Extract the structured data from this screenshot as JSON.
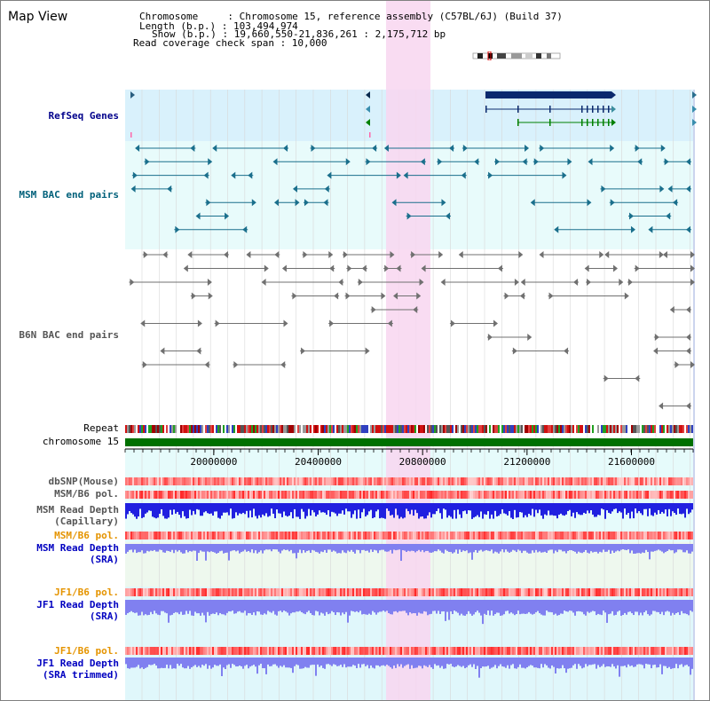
{
  "header": {
    "title": "Map View",
    "chromosome_line": "Chromosome     : Chromosome 15, reference assembly (C57BL/6J) (Build 37)",
    "length_line": "Length (b.p.) : 103,494,974",
    "show_line": "Show (b.p.) : 19,660,550-21,836,261 : 2,175,712 bp",
    "coverage_line": "Read coverage check span : 10,000"
  },
  "tracks": {
    "refseq": "RefSeq Genes",
    "msm_bac": "MSM BAC end pairs",
    "b6n_bac": "B6N BAC end pairs",
    "repeat": "Repeat",
    "chromosome": "chromosome 15",
    "dbsnp": "dbSNP(Mouse)",
    "msm_pol_1": "MSM/B6 pol.",
    "msm_depth_cap_1": "MSM Read Depth",
    "msm_depth_cap_2": "(Capillary)",
    "msm_pol_2": "MSM/B6 pol.",
    "msm_depth_sra_1": "MSM Read Depth",
    "msm_depth_sra_2": "(SRA)",
    "jf1_pol_1": "JF1/B6 pol.",
    "jf1_depth_sra_1": "JF1 Read Depth",
    "jf1_depth_sra_2": "(SRA)",
    "jf1_pol_2": "JF1/B6 pol.",
    "jf1_depth_trim_1": "JF1 Read Depth",
    "jf1_depth_trim_2": "(SRA trimmed)"
  },
  "axis": {
    "ticks": [
      "20000000",
      "20400000",
      "20800000",
      "21200000",
      "21600000"
    ],
    "tick_values": [
      20000000,
      20400000,
      20800000,
      21200000,
      21600000
    ],
    "range": [
      19660550,
      21836261
    ]
  },
  "highlight_region": [
    20660000,
    20830000
  ],
  "colors": {
    "refseq_bg": "#d9f1fc",
    "bac_bg": "#e8fbfb",
    "highlight": "#f8d6f0",
    "gene_dark": "#0a2a6e",
    "gene_green": "#008000",
    "msm_bac": "#1a6f8c",
    "b6n_bac": "#707070",
    "chromosome_bar": "#007000",
    "depth_capillary": "#2020e0",
    "depth_sra": "#8080f0",
    "pol_high": "#e00000",
    "pol_low": "#ffd0d0"
  }
}
